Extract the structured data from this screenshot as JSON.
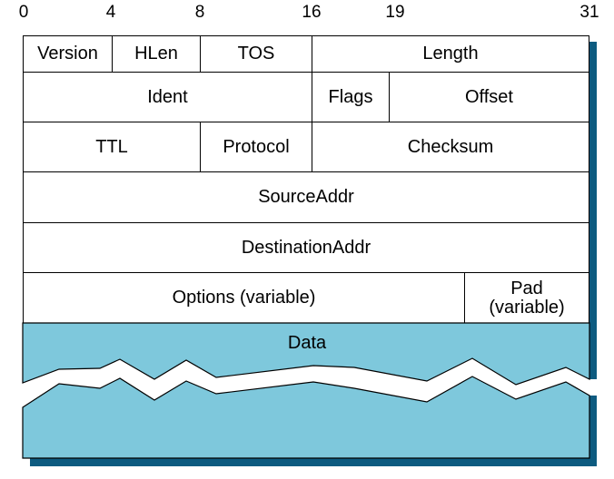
{
  "bit_positions": [
    "0",
    "4",
    "8",
    "16",
    "19",
    "31"
  ],
  "header": {
    "row1": {
      "version": "Version",
      "hlen": "HLen",
      "tos": "TOS",
      "length": "Length"
    },
    "row2": {
      "ident": "Ident",
      "flags": "Flags",
      "offset": "Offset"
    },
    "row3": {
      "ttl": "TTL",
      "protocol": "Protocol",
      "checksum": "Checksum"
    },
    "row4": {
      "source": "SourceAddr"
    },
    "row5": {
      "destination": "DestinationAddr"
    },
    "row6": {
      "options": "Options (variable)",
      "pad_line1": "Pad",
      "pad_line2": "(variable)"
    }
  },
  "data": {
    "label": "Data"
  },
  "colors": {
    "data_fill": "#7ec8dc",
    "shadow": "#0d5b80",
    "line": "#000000"
  }
}
